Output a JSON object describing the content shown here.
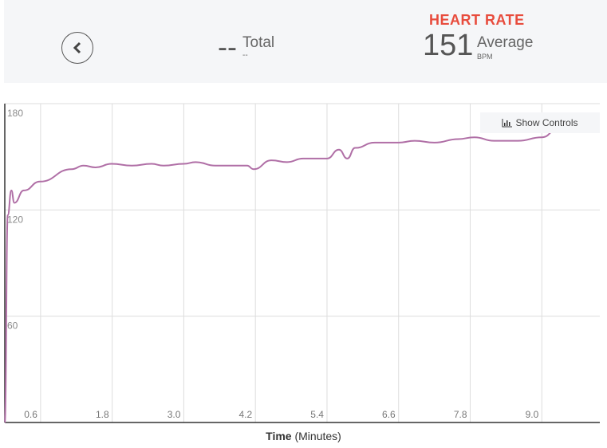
{
  "header": {
    "total_value": "--",
    "total_label": "Total",
    "total_sub": "--",
    "hr_title": "HEART RATE",
    "hr_value": "151",
    "hr_label": "Average",
    "hr_unit": "BPM"
  },
  "controls_label": "Show Controls",
  "colors": {
    "line": "#b06fa6",
    "accent": "#e84c3d"
  },
  "chart_data": {
    "type": "line",
    "xlabel_bold": "Time",
    "xlabel_rest": "(Minutes)",
    "ylabel": "",
    "xlim": [
      0,
      10
    ],
    "ylim": [
      0,
      180
    ],
    "xticks": [
      "0.6",
      "1.8",
      "3.0",
      "4.2",
      "5.4",
      "6.6",
      "7.8",
      "9.0"
    ],
    "yticks": [
      "60",
      "120",
      "180"
    ],
    "grid": true,
    "series": [
      {
        "name": "Heart Rate",
        "x": [
          0,
          0.05,
          0.11,
          0.16,
          0.32,
          0.59,
          1.12,
          1.32,
          1.52,
          1.79,
          2.13,
          2.46,
          2.66,
          3.0,
          3.2,
          3.53,
          4.06,
          4.17,
          4.47,
          4.73,
          5.0,
          5.4,
          5.6,
          5.74,
          5.87,
          6.2,
          6.6,
          6.87,
          7.2,
          7.6,
          7.87,
          8.2,
          8.6,
          9.0,
          9.28,
          9.97
        ],
        "y": [
          0,
          117,
          131,
          124,
          131,
          136,
          143,
          145,
          144,
          146,
          145,
          146,
          145,
          146,
          147,
          145,
          145,
          143,
          148,
          147,
          149,
          149,
          154,
          149,
          155,
          158,
          158,
          159,
          158,
          160,
          161,
          159,
          159,
          161,
          166,
          166
        ]
      }
    ]
  }
}
